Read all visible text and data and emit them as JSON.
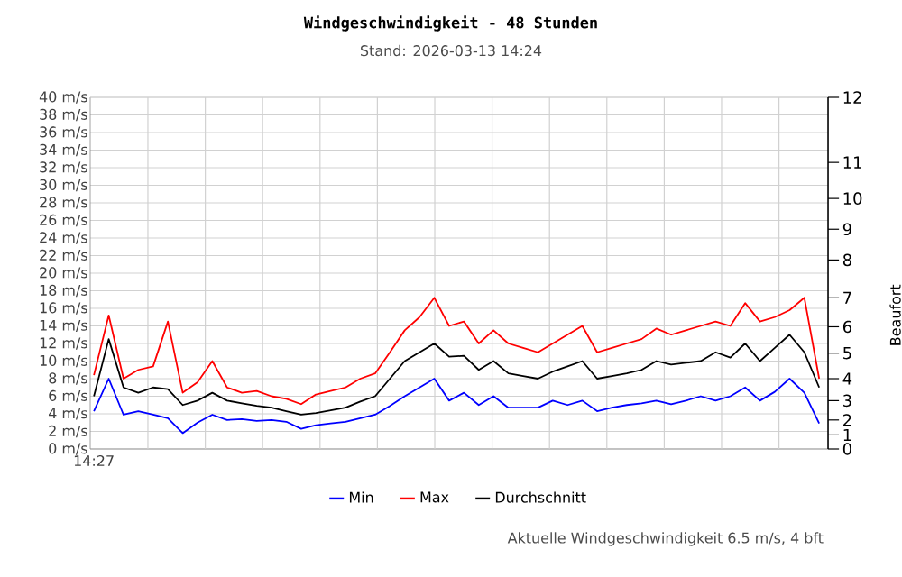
{
  "chart_data": {
    "type": "line",
    "title": "Windgeschwindigkeit - 48 Stunden",
    "subtitle": "Stand: 2026-03-13 14:24",
    "y2label": "Beaufort",
    "annotations": [
      "Aktuelle Windgeschwindigkeit 6.5 m/s, 4 bft",
      "0",
      "1",
      "2",
      "3",
      "4",
      "5",
      "6",
      "7",
      "8",
      "9",
      "10",
      "11",
      "12"
    ],
    "categories": [
      "14:27",
      null,
      null,
      null,
      null,
      null,
      null,
      null,
      null,
      null,
      null,
      null,
      null,
      null,
      null,
      null,
      null,
      null,
      null,
      null,
      null,
      null,
      null,
      null,
      null,
      null,
      null,
      null,
      null,
      null,
      null,
      null,
      null,
      null,
      null,
      null,
      null,
      null,
      null,
      null,
      null,
      null,
      null,
      null,
      null,
      null,
      null,
      null,
      null,
      null
    ],
    "series": [
      {
        "name": "Min",
        "color": "#0000ff",
        "values": [
          4.3,
          8,
          3.9,
          4.3,
          3.9,
          3.5,
          1.8,
          3,
          3.9,
          3.3,
          3.4,
          3.2,
          3.3,
          3.1,
          2.3,
          2.7,
          2.9,
          3.1,
          3.5,
          3.9,
          4.9,
          6,
          7,
          8,
          5.5,
          6.4,
          5,
          6,
          4.7,
          4.7,
          4.7,
          5.5,
          5,
          5.5,
          4.3,
          4.7,
          5,
          5.2,
          5.5,
          5.1,
          5.5,
          6,
          5.5,
          6,
          7,
          5.5,
          6.5,
          8,
          6.4,
          2.9
        ]
      },
      {
        "name": "Max",
        "color": "#ff0000",
        "values": [
          8.4,
          15.2,
          8,
          9,
          9.4,
          14.5,
          6.4,
          7.6,
          10,
          7,
          6.4,
          6.6,
          6,
          5.7,
          5.1,
          6.2,
          6.6,
          7,
          8,
          8.6,
          11,
          13.5,
          15,
          17.2,
          14,
          14.5,
          12,
          13.5,
          12,
          11.5,
          11,
          12,
          13,
          14,
          11,
          11.5,
          12,
          12.5,
          13.7,
          13,
          13.5,
          14,
          14.5,
          14,
          16.6,
          14.5,
          15,
          15.8,
          17.2,
          8
        ]
      },
      {
        "name": "Durchschnitt",
        "color": "#000000",
        "values": [
          6,
          12.5,
          7,
          6.4,
          7,
          6.8,
          5,
          5.5,
          6.4,
          5.5,
          5.2,
          4.9,
          4.7,
          4.3,
          3.9,
          4.1,
          4.4,
          4.7,
          5.4,
          6,
          8,
          10,
          11,
          12,
          10.5,
          10.6,
          9,
          10,
          8.6,
          8.3,
          8,
          8.8,
          9.4,
          10,
          8,
          8.3,
          8.6,
          9,
          10,
          9.6,
          9.8,
          10,
          11,
          10.4,
          12,
          10,
          11.5,
          13,
          11,
          7
        ]
      }
    ],
    "ylim": [
      0,
      40
    ],
    "yticks": [
      {
        "value": 0,
        "label": "0 m/s"
      },
      {
        "value": 2,
        "label": "2 m/s"
      },
      {
        "value": 4,
        "label": "4 m/s"
      },
      {
        "value": 6,
        "label": "6 m/s"
      },
      {
        "value": 8,
        "label": "8 m/s"
      },
      {
        "value": 10,
        "label": "10 m/s"
      },
      {
        "value": 12,
        "label": "12 m/s"
      },
      {
        "value": 14,
        "label": "14 m/s"
      },
      {
        "value": 16,
        "label": "16 m/s"
      },
      {
        "value": 18,
        "label": "18 m/s"
      },
      {
        "value": 20,
        "label": "20 m/s"
      },
      {
        "value": 22,
        "label": "22 m/s"
      },
      {
        "value": 24,
        "label": "24 m/s"
      },
      {
        "value": 26,
        "label": "26 m/s"
      },
      {
        "value": 28,
        "label": "28 m/s"
      },
      {
        "value": 30,
        "label": "30 m/s"
      },
      {
        "value": 32,
        "label": "32 m/s"
      },
      {
        "value": 34,
        "label": "34 m/s"
      },
      {
        "value": 36,
        "label": "36 m/s"
      },
      {
        "value": 38,
        "label": "38 m/s"
      },
      {
        "value": 40,
        "label": "40 m/s"
      }
    ],
    "grid": true,
    "legend": "bottom"
  }
}
